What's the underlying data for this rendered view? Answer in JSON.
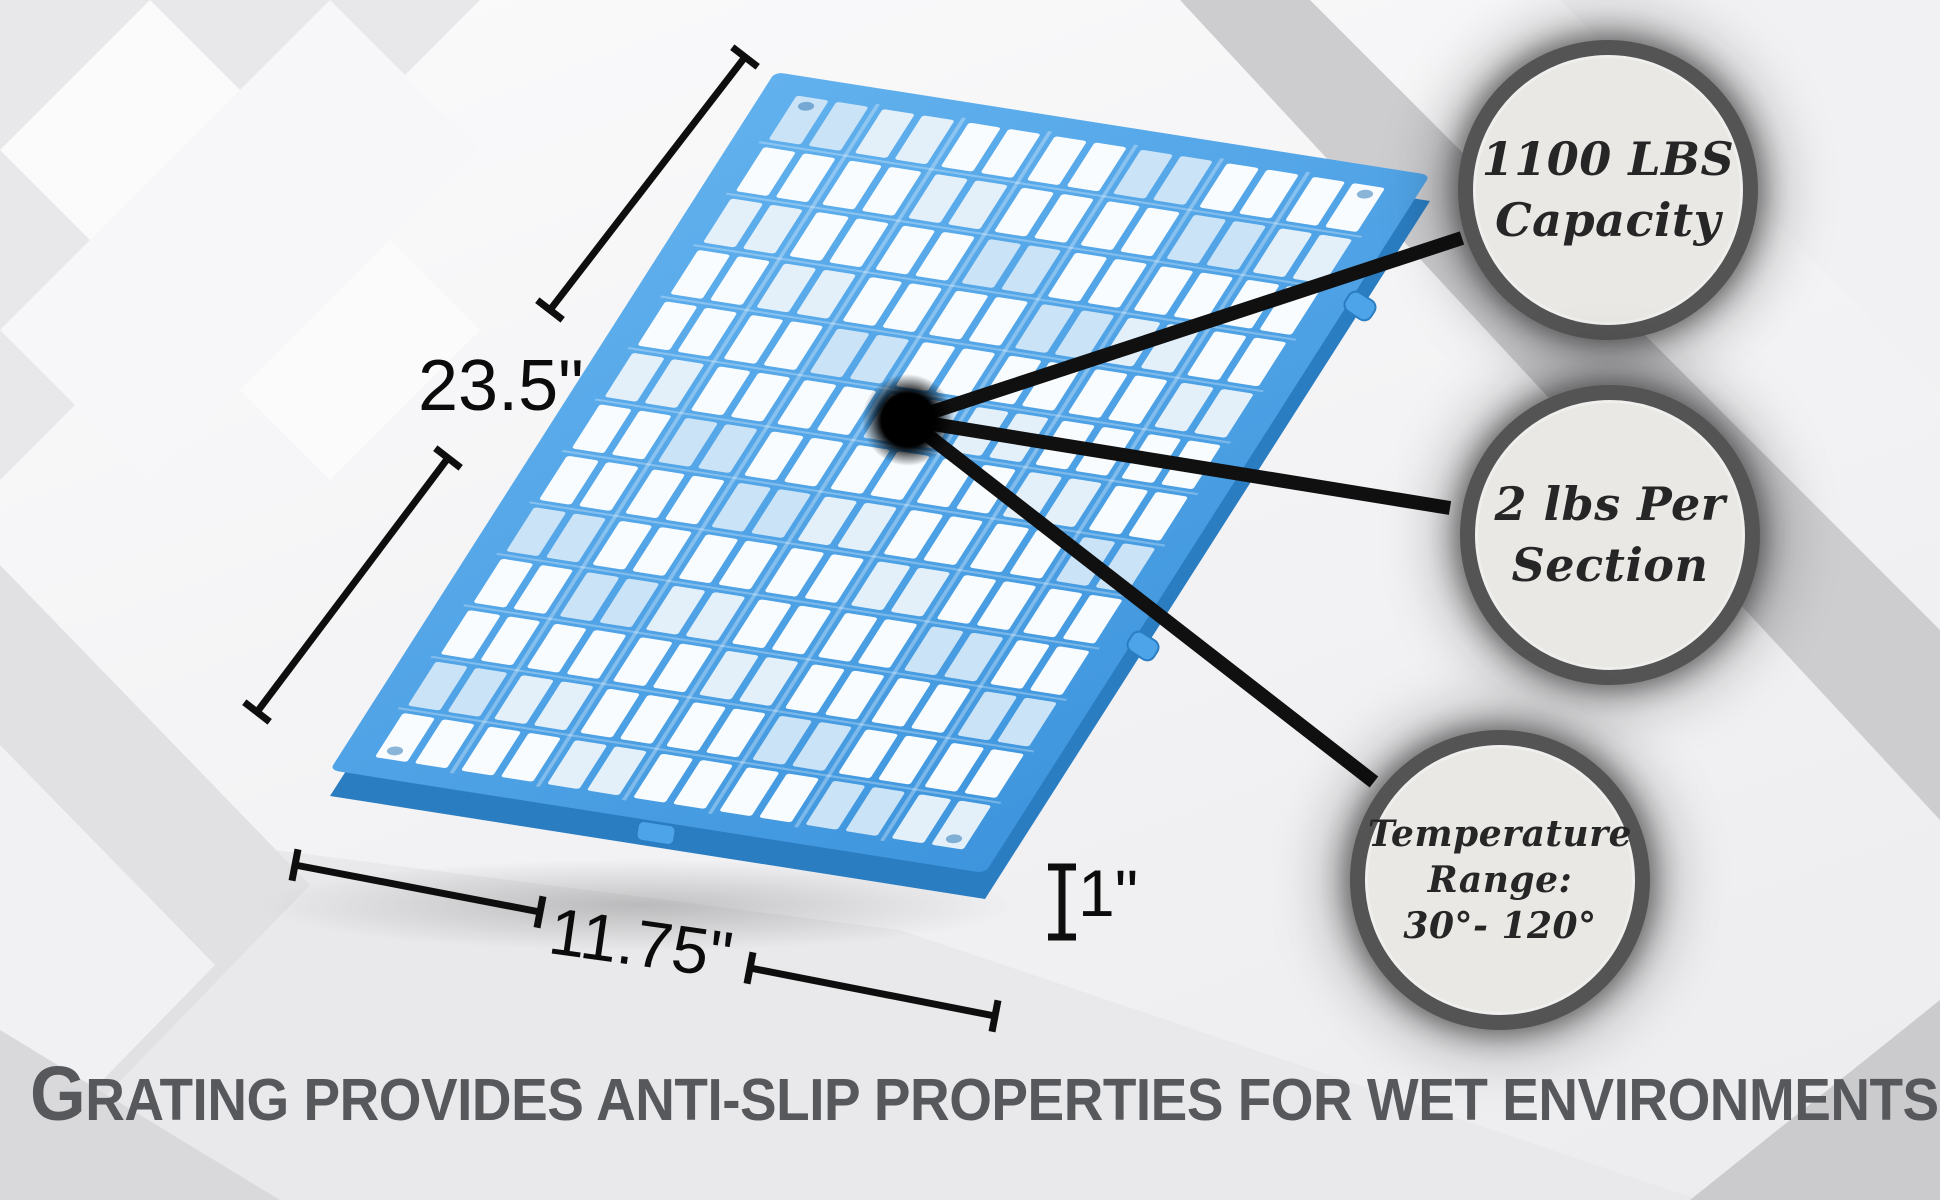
{
  "diagram": {
    "dim_length_label": "23.5\"",
    "dim_width_label": "11.75\"",
    "dim_height_label": "1\""
  },
  "callouts": [
    {
      "lines": [
        "1100 LBS",
        "Capacity"
      ]
    },
    {
      "lines": [
        "2 lbs Per",
        "Section"
      ]
    },
    {
      "lines": [
        "Temperature",
        "Range:",
        "30°- 120°"
      ]
    }
  ],
  "headline": "Grating provides anti-slip properties for wet environments",
  "colors": {
    "grating_blue": "#4aa0e6",
    "grating_blue_dark": "#2b7dc2",
    "callout_ring": "#545454",
    "callout_fill": "#e9e8e5",
    "line_black": "#101010",
    "headline_gray": "#57585b"
  }
}
